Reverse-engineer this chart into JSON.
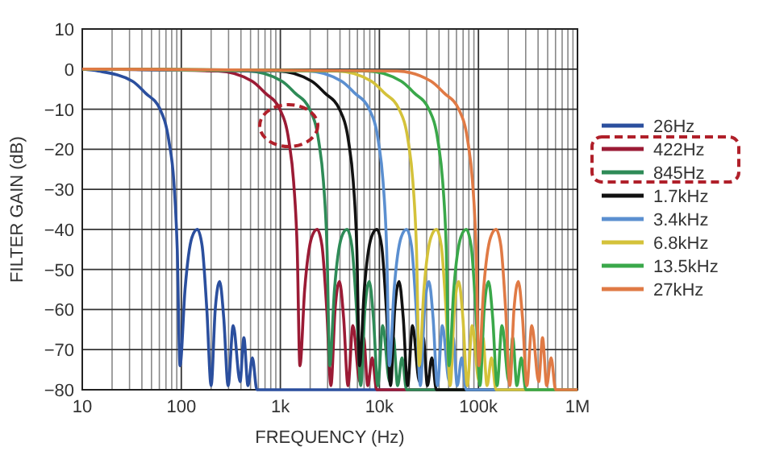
{
  "chart_data": {
    "type": "line",
    "xlabel": "FREQUENCY (Hz)",
    "ylabel": "FILTER GAIN (dB)",
    "log": "x",
    "grid": true,
    "legend": "right",
    "line_style": "solid",
    "xlim": [
      10,
      1000000
    ],
    "xticks": [
      10,
      100,
      {
        "value": 1000,
        "label": "1k"
      },
      {
        "value": 10000,
        "label": "10k"
      },
      {
        "value": 100000,
        "label": "100k"
      },
      {
        "value": 1000000,
        "label": "1M"
      }
    ],
    "ylim": [
      -80,
      10
    ],
    "yticks": [
      10,
      0,
      -10,
      -20,
      -30,
      -40,
      -50,
      -60,
      -70,
      -80
    ],
    "series": [
      {
        "name": "26Hz",
        "color": "#2b4f9e",
        "x": [
          10,
          14.5,
          32,
          43.5,
          61,
          75,
          84,
          91,
          97,
          109,
          128,
          145,
          162,
          181,
          200,
          220,
          244,
          268,
          297,
          334,
          392,
          428,
          471,
          522,
          580,
          1000000
        ],
        "values": [
          0,
          -0.5,
          -3,
          -6,
          -10,
          -18,
          -28,
          -45,
          -74,
          -55,
          -42,
          -40,
          -44,
          -60,
          -79,
          -60,
          -53,
          -62,
          -79,
          -64,
          -78,
          -67,
          -79,
          -72,
          -80,
          -80
        ]
      },
      {
        "name": "422Hz",
        "color": "#9b1b35",
        "x": [
          10,
          235,
          517,
          705,
          987,
          1220,
          1360,
          1480,
          1575,
          1760,
          2070,
          2350,
          2630,
          2940,
          3240,
          3570,
          3950,
          4350,
          4820,
          5400,
          6340,
          6930,
          7640,
          8460,
          9400,
          1000000
        ],
        "values": [
          0,
          -0.5,
          -3,
          -6,
          -10,
          -18,
          -28,
          -45,
          -74,
          -55,
          -42,
          -40,
          -44,
          -60,
          -79,
          -60,
          -53,
          -62,
          -79,
          -64,
          -78,
          -67,
          -79,
          -72,
          -80,
          -80
        ]
      },
      {
        "name": "845Hz",
        "color": "#2e8b57",
        "x": [
          10,
          470,
          1034,
          1410,
          1974,
          2440,
          2720,
          2960,
          3150,
          3520,
          4140,
          4700,
          5260,
          5880,
          6480,
          7140,
          7900,
          8700,
          9640,
          10800,
          12680,
          13860,
          15280,
          16920,
          18800,
          1000000
        ],
        "values": [
          0,
          -0.5,
          -3,
          -6,
          -10,
          -18,
          -28,
          -45,
          -74,
          -55,
          -42,
          -40,
          -44,
          -60,
          -79,
          -60,
          -53,
          -62,
          -79,
          -64,
          -78,
          -67,
          -79,
          -72,
          -80,
          -80
        ]
      },
      {
        "name": "1.7kHz",
        "color": "#111111",
        "x": [
          10,
          940,
          2068,
          2820,
          3948,
          4880,
          5440,
          5920,
          6300,
          7040,
          8280,
          9400,
          10520,
          11760,
          12960,
          14280,
          15800,
          17400,
          19280,
          21600,
          25360,
          27720,
          30560,
          33840,
          37600,
          1000000
        ],
        "values": [
          0,
          -0.5,
          -3,
          -6,
          -10,
          -18,
          -28,
          -45,
          -74,
          -55,
          -42,
          -40,
          -44,
          -60,
          -79,
          -60,
          -53,
          -62,
          -79,
          -64,
          -78,
          -67,
          -79,
          -72,
          -80,
          -80
        ]
      },
      {
        "name": "3.4kHz",
        "color": "#5b8fd0",
        "x": [
          10,
          1880,
          4136,
          5640,
          7896,
          9760,
          10880,
          11840,
          12600,
          14080,
          16560,
          18800,
          21040,
          23520,
          25920,
          28560,
          31600,
          34800,
          38560,
          43200,
          50720,
          55440,
          61120,
          67680,
          75200,
          1000000
        ],
        "values": [
          0,
          -0.5,
          -3,
          -6,
          -10,
          -18,
          -28,
          -45,
          -74,
          -55,
          -42,
          -40,
          -44,
          -60,
          -79,
          -60,
          -53,
          -62,
          -79,
          -64,
          -78,
          -67,
          -79,
          -72,
          -80,
          -80
        ]
      },
      {
        "name": "6.8kHz",
        "color": "#d4c23a",
        "x": [
          10,
          3760,
          8272,
          11280,
          15792,
          19520,
          21760,
          23680,
          25200,
          28160,
          33120,
          37600,
          42080,
          47040,
          51840,
          57120,
          63200,
          69600,
          77120,
          86400,
          101440,
          110880,
          122240,
          135360,
          150400,
          1000000
        ],
        "values": [
          0,
          -0.5,
          -3,
          -6,
          -10,
          -18,
          -28,
          -45,
          -74,
          -55,
          -42,
          -40,
          -44,
          -60,
          -79,
          -60,
          -53,
          -62,
          -79,
          -64,
          -78,
          -67,
          -79,
          -72,
          -80,
          -80
        ]
      },
      {
        "name": "13.5kHz",
        "color": "#3aa84a",
        "x": [
          10,
          7520,
          16544,
          22560,
          31584,
          39040,
          43520,
          47360,
          50400,
          56320,
          66240,
          75200,
          84160,
          94080,
          103680,
          114240,
          126400,
          139200,
          154240,
          172800,
          202880,
          221760,
          244480,
          270720,
          300800,
          1000000
        ],
        "values": [
          0,
          -0.5,
          -3,
          -6,
          -10,
          -18,
          -28,
          -45,
          -74,
          -55,
          -42,
          -40,
          -44,
          -60,
          -79,
          -60,
          -53,
          -62,
          -79,
          -64,
          -78,
          -67,
          -79,
          -72,
          -80,
          -80
        ]
      },
      {
        "name": "27kHz",
        "color": "#e07a45",
        "x": [
          10,
          15040,
          33088,
          45120,
          63168,
          78080,
          87040,
          94720,
          100800,
          112640,
          132480,
          150400,
          168320,
          188160,
          207360,
          228480,
          252800,
          278400,
          308480,
          345600,
          405760,
          443520,
          488960,
          541440,
          601600,
          1000000
        ],
        "values": [
          0,
          -0.5,
          -3,
          -6,
          -10,
          -18,
          -28,
          -45,
          -74,
          -55,
          -42,
          -40,
          -44,
          -60,
          -79,
          -60,
          -53,
          -62,
          -79,
          -64,
          -78,
          -67,
          -79,
          -72,
          -80,
          -80
        ]
      }
    ]
  }
}
